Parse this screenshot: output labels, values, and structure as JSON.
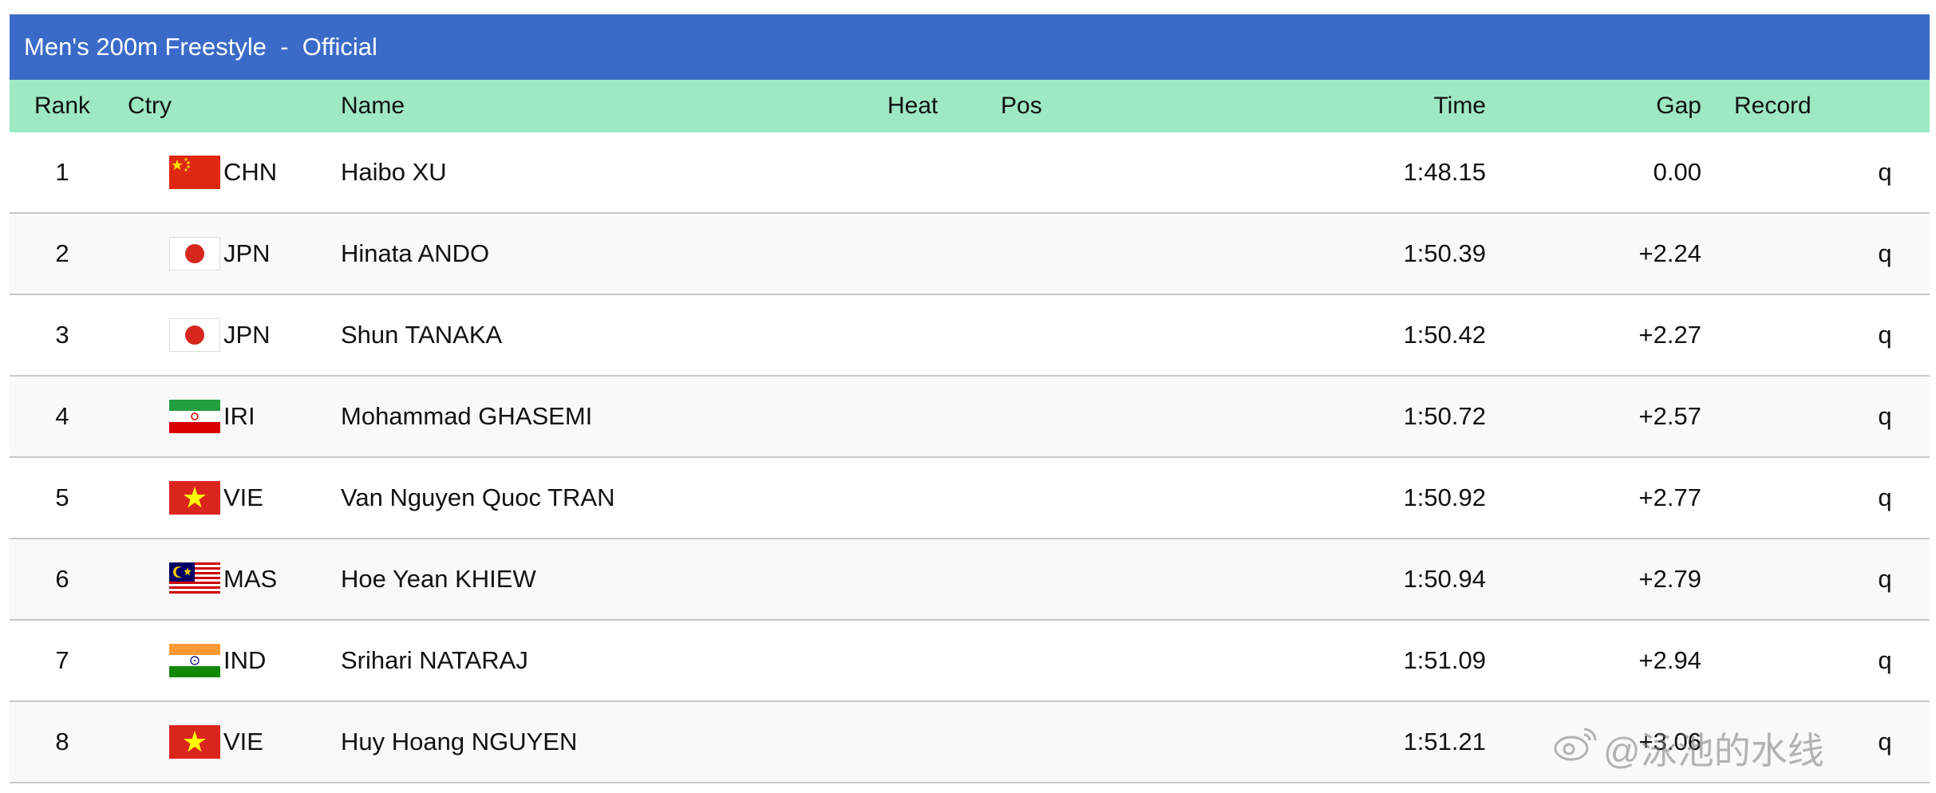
{
  "event": {
    "title": "Men's 200m Freestyle  -  Official"
  },
  "columns": {
    "rank": "Rank",
    "ctry": "Ctry",
    "name": "Name",
    "heat": "Heat",
    "pos": "Pos",
    "time": "Time",
    "gap": "Gap",
    "record": "Record"
  },
  "rows": [
    {
      "rank": "1",
      "flag": "china-flag-icon",
      "ctry": "CHN",
      "name": "Haibo XU",
      "heat": "",
      "pos": "",
      "time": "1:48.15",
      "gap": "0.00",
      "record": "",
      "q": "q"
    },
    {
      "rank": "2",
      "flag": "japan-flag-icon",
      "ctry": "JPN",
      "name": "Hinata ANDO",
      "heat": "",
      "pos": "",
      "time": "1:50.39",
      "gap": "+2.24",
      "record": "",
      "q": "q"
    },
    {
      "rank": "3",
      "flag": "japan-flag-icon",
      "ctry": "JPN",
      "name": "Shun TANAKA",
      "heat": "",
      "pos": "",
      "time": "1:50.42",
      "gap": "+2.27",
      "record": "",
      "q": "q"
    },
    {
      "rank": "4",
      "flag": "iran-flag-icon",
      "ctry": "IRI",
      "name": "Mohammad GHASEMI",
      "heat": "",
      "pos": "",
      "time": "1:50.72",
      "gap": "+2.57",
      "record": "",
      "q": "q"
    },
    {
      "rank": "5",
      "flag": "vietnam-flag-icon",
      "ctry": "VIE",
      "name": "Van Nguyen Quoc TRAN",
      "heat": "",
      "pos": "",
      "time": "1:50.92",
      "gap": "+2.77",
      "record": "",
      "q": "q"
    },
    {
      "rank": "6",
      "flag": "malaysia-flag-icon",
      "ctry": "MAS",
      "name": "Hoe Yean KHIEW",
      "heat": "",
      "pos": "",
      "time": "1:50.94",
      "gap": "+2.79",
      "record": "",
      "q": "q"
    },
    {
      "rank": "7",
      "flag": "india-flag-icon",
      "ctry": "IND",
      "name": "Srihari NATARAJ",
      "heat": "",
      "pos": "",
      "time": "1:51.09",
      "gap": "+2.94",
      "record": "",
      "q": "q"
    },
    {
      "rank": "8",
      "flag": "vietnam-flag-icon",
      "ctry": "VIE",
      "name": "Huy Hoang NGUYEN",
      "heat": "",
      "pos": "",
      "time": "1:51.21",
      "gap": "+3.06",
      "record": "",
      "q": "q"
    }
  ],
  "watermark": {
    "icon": "weibo-icon",
    "text": "@泳池的水线"
  },
  "colors": {
    "title_bar": "#3b6bc9",
    "header_row": "#9ee9c3"
  }
}
